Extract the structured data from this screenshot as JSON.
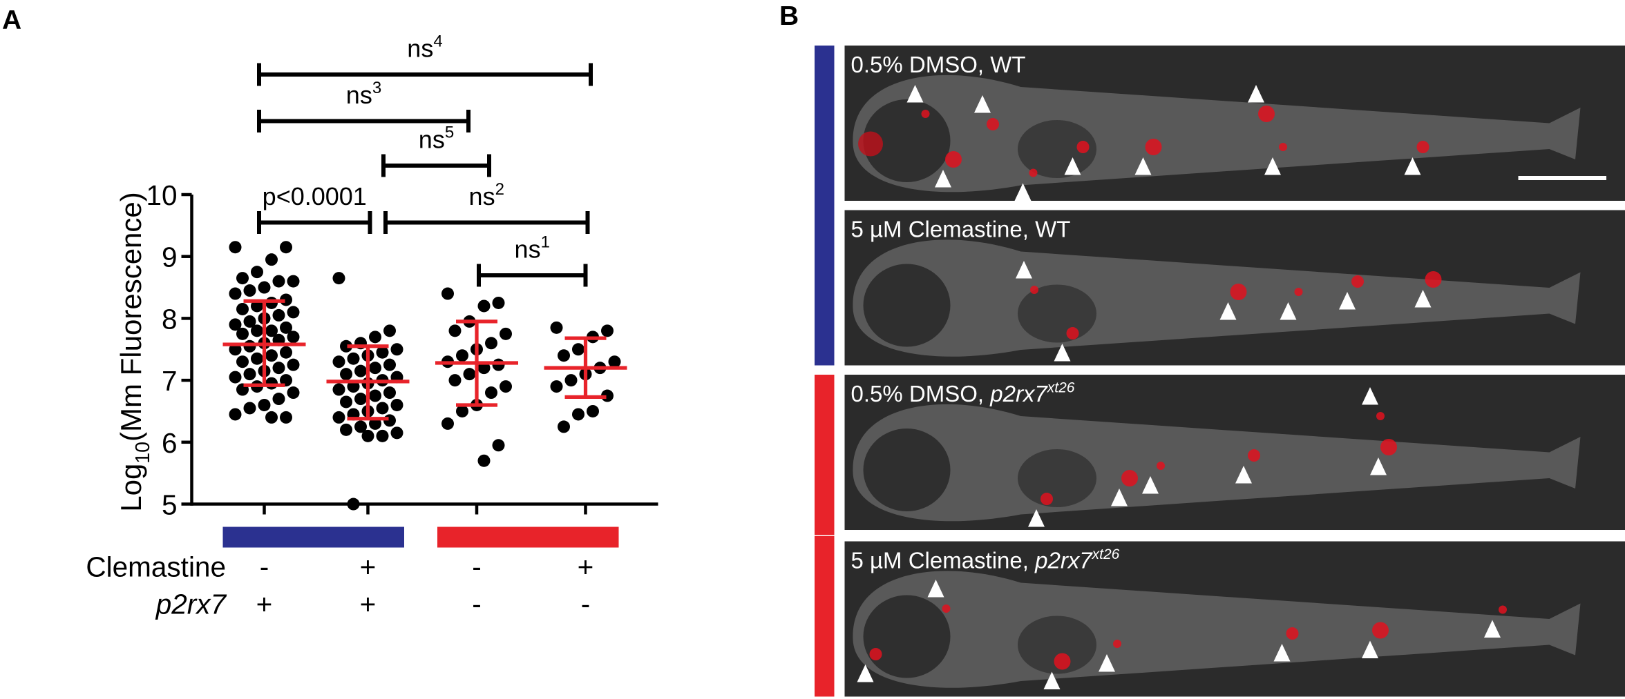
{
  "panel_a": {
    "label": "A",
    "chart_data": {
      "type": "dotplot",
      "ylabel": {
        "main": "Log",
        "sub": "10",
        "rest": "(Mm Fluorescence)"
      },
      "ylim": [
        5,
        10
      ],
      "yticks": [
        5,
        6,
        7,
        8,
        9,
        10
      ],
      "row_labels": {
        "clemastine": "Clemastine",
        "p2rx7": "p2rx7"
      },
      "dot_color": "#000000",
      "error_color": "#e8232a",
      "groups": [
        {
          "clemastine": "-",
          "p2rx7": "+",
          "color": "#2b3190",
          "mean": 7.58,
          "upper": 8.28,
          "lower": 6.92,
          "values": [
            9.15,
            9.15,
            8.95,
            8.75,
            8.65,
            8.6,
            8.6,
            8.5,
            8.45,
            8.4,
            8.3,
            8.25,
            8.2,
            8.15,
            8.1,
            8.05,
            8.0,
            7.95,
            7.9,
            7.85,
            7.8,
            7.8,
            7.75,
            7.7,
            7.65,
            7.6,
            7.55,
            7.5,
            7.45,
            7.4,
            7.35,
            7.3,
            7.25,
            7.2,
            7.15,
            7.1,
            7.05,
            7.0,
            6.95,
            6.9,
            6.85,
            6.8,
            6.7,
            6.6,
            6.55,
            6.45,
            6.4,
            6.4
          ]
        },
        {
          "clemastine": "+",
          "p2rx7": "+",
          "color": "#2b3190",
          "mean": 6.98,
          "upper": 7.55,
          "lower": 6.38,
          "values": [
            8.65,
            7.8,
            7.7,
            7.6,
            7.55,
            7.5,
            7.45,
            7.4,
            7.35,
            7.3,
            7.25,
            7.2,
            7.15,
            7.1,
            7.05,
            7.0,
            6.95,
            6.9,
            6.85,
            6.8,
            6.75,
            6.7,
            6.65,
            6.6,
            6.55,
            6.5,
            6.45,
            6.4,
            6.35,
            6.3,
            6.25,
            6.2,
            6.15,
            6.1,
            6.1,
            5.0
          ]
        },
        {
          "clemastine": "-",
          "p2rx7": "-",
          "color": "#e8232a",
          "mean": 7.28,
          "upper": 7.95,
          "lower": 6.6,
          "values": [
            8.4,
            8.25,
            8.2,
            7.95,
            7.8,
            7.75,
            7.6,
            7.5,
            7.4,
            7.3,
            7.25,
            7.2,
            7.1,
            7.0,
            6.9,
            6.8,
            6.6,
            6.5,
            6.3,
            5.95,
            5.7
          ]
        },
        {
          "clemastine": "+",
          "p2rx7": "-",
          "color": "#e8232a",
          "mean": 7.2,
          "upper": 7.68,
          "lower": 6.73,
          "values": [
            7.85,
            7.8,
            7.7,
            7.5,
            7.4,
            7.3,
            7.2,
            7.1,
            7.0,
            6.9,
            6.75,
            6.5,
            6.45,
            6.25
          ]
        }
      ],
      "comparisons": [
        {
          "text": "p<0.0001",
          "from": 0,
          "to": 1
        },
        {
          "text": "ns",
          "sup": "1",
          "from": 2,
          "to": 3
        },
        {
          "text": "ns",
          "sup": "2",
          "from": 1,
          "to": 3
        },
        {
          "text": "ns",
          "sup": "5",
          "from": 1,
          "to": 2
        },
        {
          "text": "ns",
          "sup": "3",
          "from": 0,
          "to": 2
        },
        {
          "text": "ns",
          "sup": "4",
          "from": 0,
          "to": 3
        }
      ]
    }
  },
  "panel_b": {
    "label": "B",
    "images": [
      {
        "text": "0.5% DMSO, WT",
        "color": "#2b3190"
      },
      {
        "text": "5 µM Clemastine, WT",
        "color": "#2b3190"
      },
      {
        "text": "0.5% DMSO, ",
        "italic": "p2rx7",
        "sup": "xt26",
        "color": "#e8232a"
      },
      {
        "text": "5 µM Clemastine, ",
        "italic": "p2rx7",
        "sup": "xt26",
        "color": "#e8232a"
      }
    ]
  }
}
